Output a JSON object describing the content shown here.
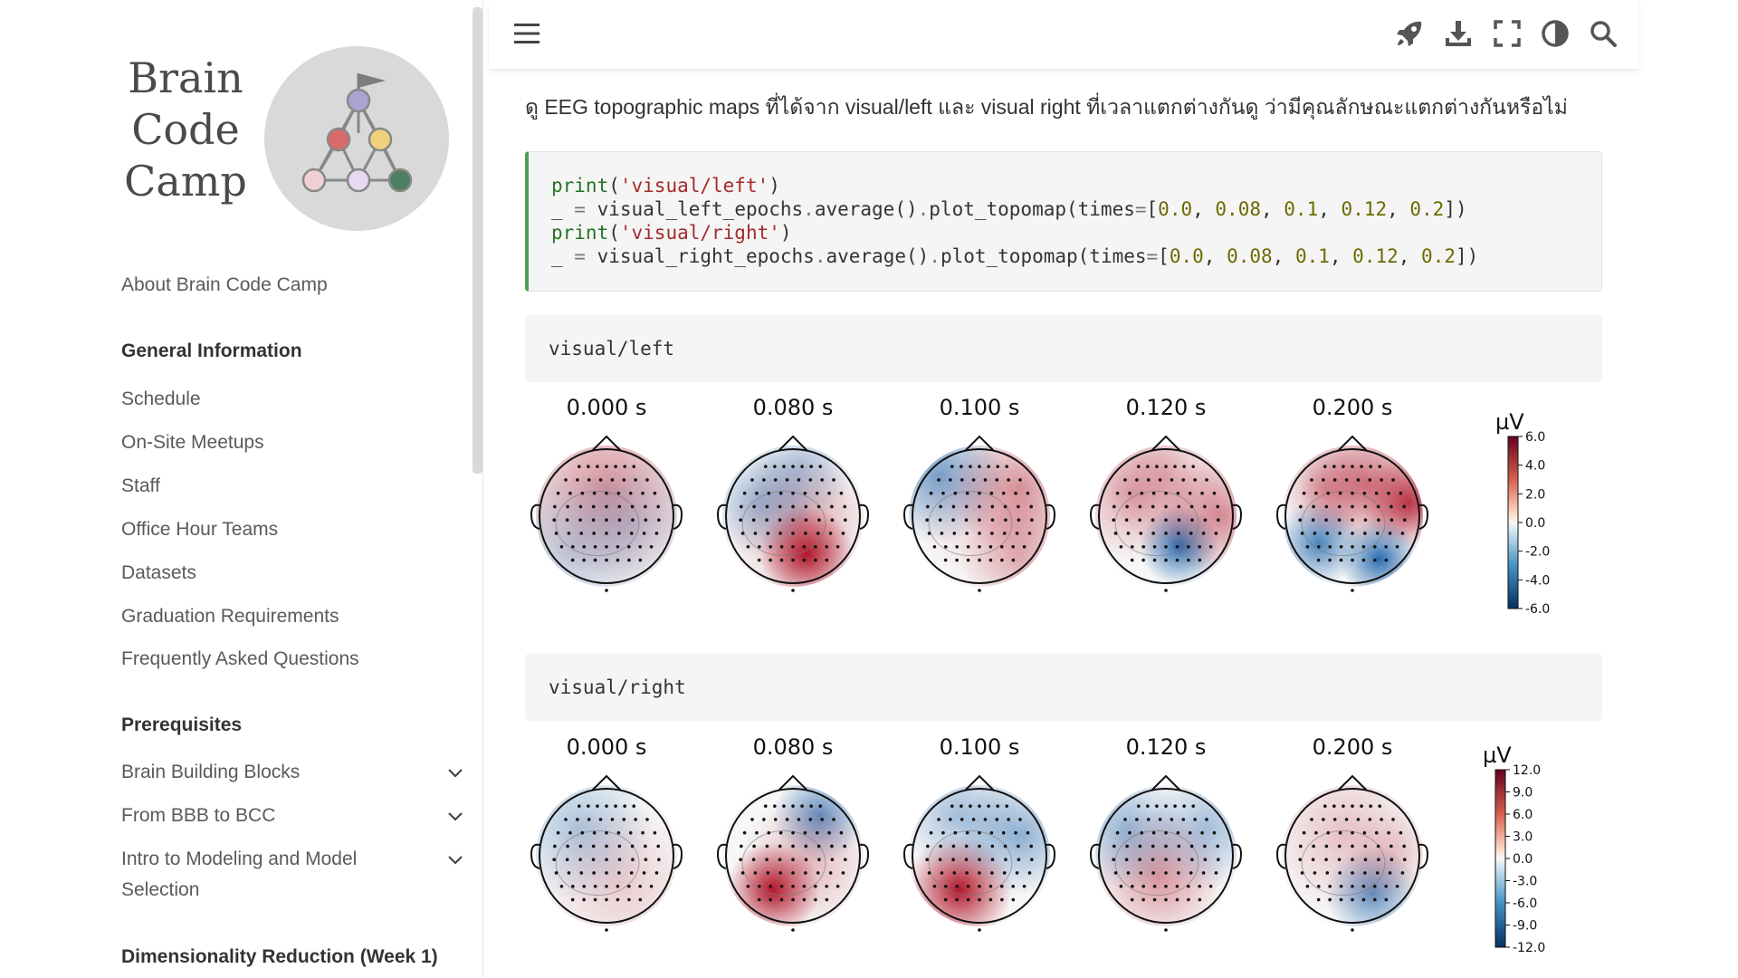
{
  "sidebar": {
    "logo_lines": [
      "Brain",
      "Code",
      "Camp"
    ],
    "about": "About Brain Code Camp",
    "sections": [
      {
        "heading": "General Information",
        "items": [
          "Schedule",
          "On-Site Meetups",
          "Staff",
          "Office Hour Teams",
          "Datasets",
          "Graduation Requirements",
          "Frequently Asked Questions"
        ]
      },
      {
        "heading": "Prerequisites",
        "items": [
          "Brain Building Blocks",
          "From BBB to BCC",
          "Intro to Modeling and Model Selection"
        ]
      },
      {
        "heading": "Dimensionality Reduction (Week 1)",
        "items": []
      }
    ]
  },
  "toolbar": {
    "menu_icon": "hamburger-menu-icon",
    "icons": [
      "rocket-icon",
      "download-icon",
      "fullscreen-icon",
      "theme-toggle-icon",
      "search-icon"
    ]
  },
  "content": {
    "intro": "ดู EEG topographic maps ที่ได้จาก visual/left และ visual right ที่เวลาแตกต่างกันดู ว่ามีคุณลักษณะแตกต่างกันหรือไม่",
    "code_lines": [
      "print('visual/left')",
      "_ = visual_left_epochs.average().plot_topomap(times=[0.0, 0.08, 0.1, 0.12, 0.2])",
      "print('visual/right')",
      "_ = visual_right_epochs.average().plot_topomap(times=[0.0, 0.08, 0.1, 0.12, 0.2])"
    ],
    "outputs": [
      "visual/left",
      "visual/right"
    ]
  },
  "chart_data": [
    {
      "type": "heatmap",
      "title": "visual/left",
      "time_labels": [
        "0.000 s",
        "0.080 s",
        "0.100 s",
        "0.120 s",
        "0.200 s"
      ],
      "colorbar_unit": "µV",
      "colorbar_ticks": [
        "6.0",
        "4.0",
        "2.0",
        "0.0",
        "-2.0",
        "-4.0",
        "-6.0"
      ],
      "colorbar_range": [
        -6.0,
        6.0
      ]
    },
    {
      "type": "heatmap",
      "title": "visual/right",
      "time_labels": [
        "0.000 s",
        "0.080 s",
        "0.100 s",
        "0.120 s",
        "0.200 s"
      ],
      "colorbar_unit": "µV",
      "colorbar_ticks": [
        "12.0",
        "9.0",
        "6.0",
        "3.0",
        "0.0",
        "-3.0",
        "-6.0",
        "-9.0",
        "-12.0"
      ],
      "colorbar_range": [
        -12.0,
        12.0
      ]
    }
  ]
}
